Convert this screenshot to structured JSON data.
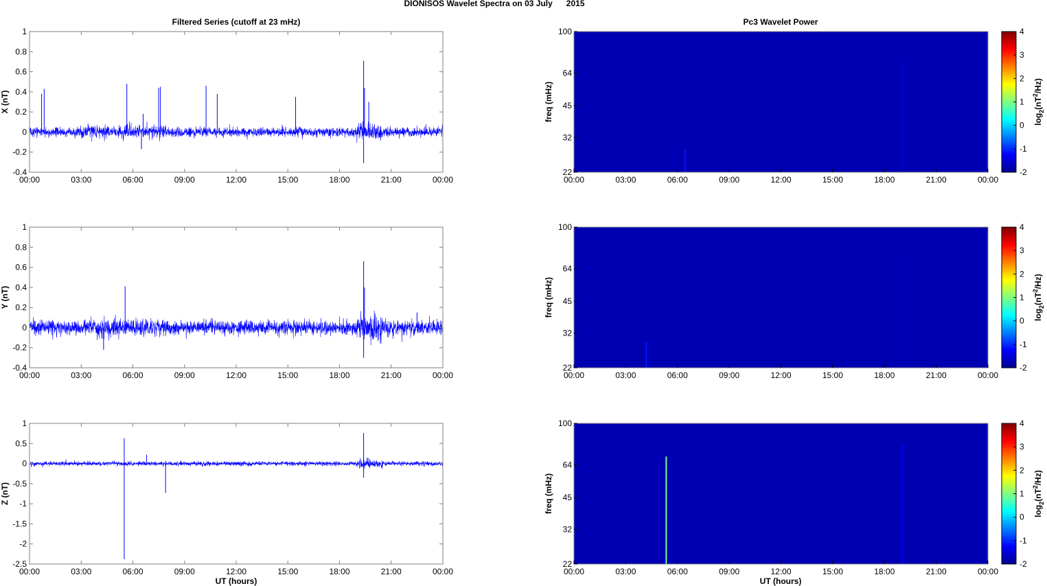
{
  "figure": {
    "title": "DIONISOS Wavelet Spectra on 03 July      2015",
    "left_title": "Filtered Series (cutoff at 23 mHz)",
    "right_title": "Pc3 Wavelet Power",
    "xlabel": "UT (hours)"
  },
  "chart_data": [
    {
      "type": "line",
      "id": "X",
      "ylabel": "X (nT)",
      "xlim_hours": [
        0,
        24
      ],
      "xticks": [
        "00:00",
        "03:00",
        "06:00",
        "09:00",
        "12:00",
        "15:00",
        "18:00",
        "21:00",
        "00:00"
      ],
      "ylim": [
        -0.4,
        1
      ],
      "yticks": [
        "1",
        "0.8",
        "0.6",
        "0.4",
        "0.2",
        "0",
        "-0.2",
        "-0.4"
      ],
      "ytick_values": [
        1,
        0.8,
        0.6,
        0.4,
        0.2,
        0,
        -0.2,
        -0.4
      ],
      "noise_band": [
        {
          "from": 0,
          "to": 2.5,
          "amplitude": 0.05
        },
        {
          "from": 2.5,
          "to": 8,
          "amplitude": 0.07
        },
        {
          "from": 8,
          "to": 19,
          "amplitude": 0.05
        },
        {
          "from": 19,
          "to": 20.5,
          "amplitude": 0.1
        },
        {
          "from": 20.5,
          "to": 24,
          "amplitude": 0.05
        }
      ],
      "spikes": [
        {
          "x": 0.7,
          "y": 0.38
        },
        {
          "x": 0.85,
          "y": 0.43
        },
        {
          "x": 5.65,
          "y": 0.48
        },
        {
          "x": 6.6,
          "y": 0.18
        },
        {
          "x": 7.5,
          "y": 0.44
        },
        {
          "x": 7.6,
          "y": 0.45
        },
        {
          "x": 10.25,
          "y": 0.46
        },
        {
          "x": 10.9,
          "y": 0.38
        },
        {
          "x": 15.45,
          "y": 0.35
        },
        {
          "x": 19.4,
          "y": 0.71
        },
        {
          "x": 19.45,
          "y": 0.44
        },
        {
          "x": 19.4,
          "y": -0.31
        },
        {
          "x": 19.7,
          "y": 0.3
        },
        {
          "x": 6.5,
          "y": -0.17
        }
      ],
      "color": "#0000ff"
    },
    {
      "type": "line",
      "id": "Y",
      "ylabel": "Y (nT)",
      "xlim_hours": [
        0,
        24
      ],
      "xticks": [
        "00:00",
        "03:00",
        "06:00",
        "09:00",
        "12:00",
        "15:00",
        "18:00",
        "21:00",
        "00:00"
      ],
      "ylim": [
        -0.4,
        1
      ],
      "yticks": [
        "1",
        "0.8",
        "0.6",
        "0.4",
        "0.2",
        "0",
        "-0.2",
        "-0.4"
      ],
      "ytick_values": [
        1,
        0.8,
        0.6,
        0.4,
        0.2,
        0,
        -0.2,
        -0.4
      ],
      "noise_band": [
        {
          "from": 0,
          "to": 3.5,
          "amplitude": 0.08
        },
        {
          "from": 3.5,
          "to": 8,
          "amplitude": 0.1
        },
        {
          "from": 8,
          "to": 19,
          "amplitude": 0.08
        },
        {
          "from": 19,
          "to": 20.5,
          "amplitude": 0.14
        },
        {
          "from": 20.5,
          "to": 24,
          "amplitude": 0.08
        }
      ],
      "spikes": [
        {
          "x": 5.55,
          "y": 0.41
        },
        {
          "x": 4.3,
          "y": -0.22
        },
        {
          "x": 19.4,
          "y": 0.66
        },
        {
          "x": 19.45,
          "y": 0.4
        },
        {
          "x": 19.4,
          "y": -0.3
        },
        {
          "x": 22.5,
          "y": 0.15
        }
      ],
      "color": "#0000ff"
    },
    {
      "type": "line",
      "id": "Z",
      "ylabel": "Z (nT)",
      "xlim_hours": [
        0,
        24
      ],
      "xticks": [
        "00:00",
        "03:00",
        "06:00",
        "09:00",
        "12:00",
        "15:00",
        "18:00",
        "21:00",
        "00:00"
      ],
      "ylim": [
        -2.5,
        1
      ],
      "yticks": [
        "1",
        "0.5",
        "0",
        "-0.5",
        "-1",
        "-1.5",
        "-2",
        "-2.5"
      ],
      "ytick_values": [
        1,
        0.5,
        0,
        -0.5,
        -1,
        -1.5,
        -2,
        -2.5
      ],
      "noise_band": [
        {
          "from": 0,
          "to": 19,
          "amplitude": 0.06
        },
        {
          "from": 19,
          "to": 20.5,
          "amplitude": 0.14
        },
        {
          "from": 20.5,
          "to": 24,
          "amplitude": 0.06
        }
      ],
      "spikes": [
        {
          "x": 5.5,
          "y": -2.38
        },
        {
          "x": 5.5,
          "y": 0.63
        },
        {
          "x": 7.9,
          "y": -0.73
        },
        {
          "x": 19.4,
          "y": 0.76
        },
        {
          "x": 19.4,
          "y": -0.35
        },
        {
          "x": 6.8,
          "y": 0.22
        }
      ],
      "color": "#0000ff"
    },
    {
      "type": "heatmap",
      "id": "X-power",
      "ylabel": "freq (mHz)",
      "xlim_hours": [
        0,
        24
      ],
      "xticks": [
        "00:00",
        "03:00",
        "06:00",
        "09:00",
        "12:00",
        "15:00",
        "18:00",
        "21:00",
        "00:00"
      ],
      "ylim_mHz": [
        22,
        100
      ],
      "yscale": "log",
      "yticks": [
        "100",
        "64",
        "45",
        "32",
        "22"
      ],
      "ytick_values": [
        100,
        64,
        45,
        32,
        22
      ],
      "background_log2_power": -2,
      "features": [
        {
          "x": 6.45,
          "fmax": 28,
          "log2_power": -1.4
        },
        {
          "x": 19.05,
          "fmax": 75,
          "log2_power": -1.85
        }
      ],
      "colorbar": {
        "label": "log2(nT^2/Hz)",
        "range": [
          -2,
          4
        ],
        "ticks": [
          "4",
          "3",
          "2",
          "1",
          "0",
          "-1",
          "-2"
        ],
        "tick_values": [
          4,
          3,
          2,
          1,
          0,
          -1,
          -2
        ]
      }
    },
    {
      "type": "heatmap",
      "id": "Y-power",
      "ylabel": "freq (mHz)",
      "xlim_hours": [
        0,
        24
      ],
      "xticks": [
        "00:00",
        "03:00",
        "06:00",
        "09:00",
        "12:00",
        "15:00",
        "18:00",
        "21:00",
        "00:00"
      ],
      "ylim_mHz": [
        22,
        100
      ],
      "yscale": "log",
      "yticks": [
        "100",
        "64",
        "45",
        "32",
        "22"
      ],
      "ytick_values": [
        100,
        64,
        45,
        32,
        22
      ],
      "background_log2_power": -2,
      "features": [
        {
          "x": 4.2,
          "fmax": 29,
          "log2_power": -1.4
        },
        {
          "x": 19.05,
          "fmax": 70,
          "log2_power": -1.9
        }
      ],
      "colorbar": {
        "label": "log2(nT^2/Hz)",
        "range": [
          -2,
          4
        ],
        "ticks": [
          "4",
          "3",
          "2",
          "1",
          "0",
          "-1",
          "-2"
        ],
        "tick_values": [
          4,
          3,
          2,
          1,
          0,
          -1,
          -2
        ]
      }
    },
    {
      "type": "heatmap",
      "id": "Z-power",
      "ylabel": "freq (mHz)",
      "xlim_hours": [
        0,
        24
      ],
      "xticks": [
        "00:00",
        "03:00",
        "06:00",
        "09:00",
        "12:00",
        "15:00",
        "18:00",
        "21:00",
        "00:00"
      ],
      "ylim_mHz": [
        22,
        100
      ],
      "yscale": "log",
      "yticks": [
        "100",
        "64",
        "45",
        "32",
        "22"
      ],
      "ytick_values": [
        100,
        64,
        45,
        32,
        22
      ],
      "background_log2_power": -2,
      "features": [
        {
          "x": 5.35,
          "fmax": 70,
          "log2_power": 0.8
        },
        {
          "x": 19.05,
          "fmax": 80,
          "log2_power": -1.6
        }
      ],
      "colorbar": {
        "label": "log2(nT^2/Hz)",
        "range": [
          -2,
          4
        ],
        "ticks": [
          "4",
          "3",
          "2",
          "1",
          "0",
          "-1",
          "-2"
        ],
        "tick_values": [
          4,
          3,
          2,
          1,
          0,
          -1,
          -2
        ]
      }
    }
  ]
}
